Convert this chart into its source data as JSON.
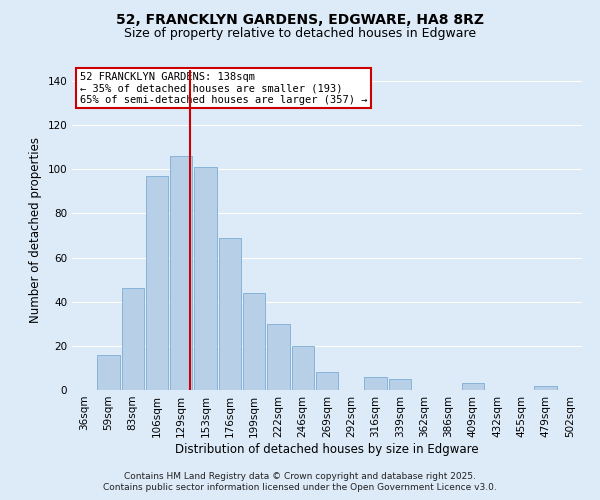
{
  "title": "52, FRANCKLYN GARDENS, EDGWARE, HA8 8RZ",
  "subtitle": "Size of property relative to detached houses in Edgware",
  "xlabel": "Distribution of detached houses by size in Edgware",
  "ylabel": "Number of detached properties",
  "bar_color": "#b8cfe8",
  "bar_edge_color": "#7aadd4",
  "background_color": "#ddeaf7",
  "grid_color": "#ffffff",
  "bin_labels": [
    "36sqm",
    "59sqm",
    "83sqm",
    "106sqm",
    "129sqm",
    "153sqm",
    "176sqm",
    "199sqm",
    "222sqm",
    "246sqm",
    "269sqm",
    "292sqm",
    "316sqm",
    "339sqm",
    "362sqm",
    "386sqm",
    "409sqm",
    "432sqm",
    "455sqm",
    "479sqm",
    "502sqm"
  ],
  "bin_values": [
    0,
    16,
    46,
    97,
    106,
    101,
    69,
    44,
    30,
    20,
    8,
    0,
    6,
    5,
    0,
    0,
    3,
    0,
    0,
    2,
    0
  ],
  "ylim": [
    0,
    145
  ],
  "yticks": [
    0,
    20,
    40,
    60,
    80,
    100,
    120,
    140
  ],
  "vline_color": "#cc0000",
  "vline_position": 4.375,
  "annotation_title": "52 FRANCKLYN GARDENS: 138sqm",
  "annotation_line1": "← 35% of detached houses are smaller (193)",
  "annotation_line2": "65% of semi-detached houses are larger (357) →",
  "annotation_box_color": "#ffffff",
  "annotation_box_edge": "#cc0000",
  "footer1": "Contains HM Land Registry data © Crown copyright and database right 2025.",
  "footer2": "Contains public sector information licensed under the Open Government Licence v3.0.",
  "title_fontsize": 10,
  "subtitle_fontsize": 9,
  "label_fontsize": 8.5,
  "tick_fontsize": 7.5,
  "annotation_fontsize": 7.5,
  "footer_fontsize": 6.5
}
